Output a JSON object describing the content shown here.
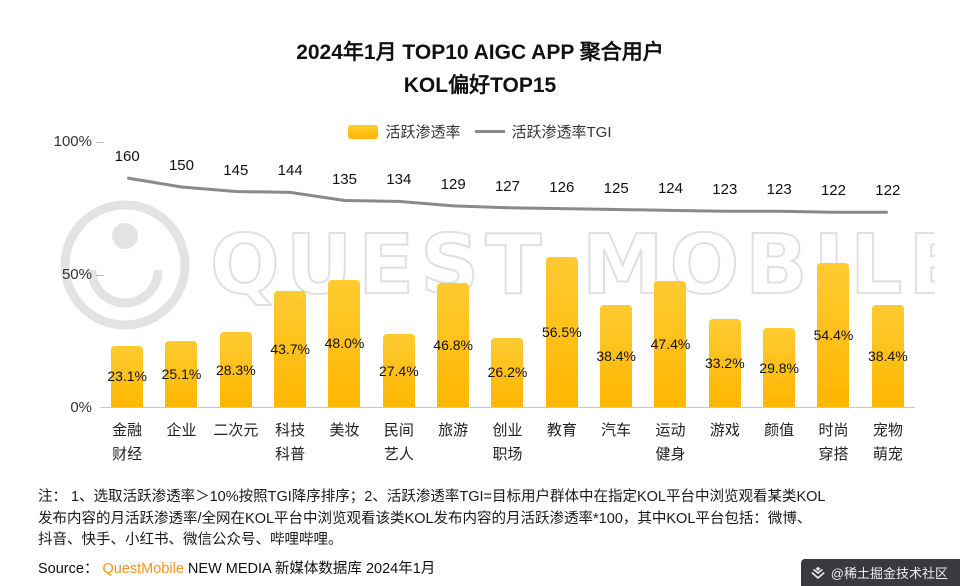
{
  "title": {
    "line1": "2024年1月 TOP10 AIGC APP 聚合用户",
    "line2": "KOL偏好TOP15"
  },
  "legend": {
    "bar_label": "活跃渗透率",
    "line_label": "活跃渗透率TGI"
  },
  "chart_data": {
    "type": "bar",
    "title": "2024年1月 TOP10 AIGC APP 聚合用户 KOL偏好TOP15",
    "categories": [
      "金融\n财经",
      "企业",
      "二次元",
      "科技\n科普",
      "美妆",
      "民间\n艺人",
      "旅游",
      "创业\n职场",
      "教育",
      "汽车",
      "运动\n健身",
      "游戏",
      "颜值",
      "时尚\n穿搭",
      "宠物\n萌宠"
    ],
    "series": [
      {
        "name": "活跃渗透率",
        "type": "bar",
        "unit": "%",
        "color": "#FFB600",
        "color_top": "#FFCB32",
        "values": [
          23.1,
          25.1,
          28.3,
          43.7,
          48.0,
          27.4,
          46.8,
          26.2,
          56.5,
          38.4,
          47.4,
          33.2,
          29.8,
          54.4,
          38.4
        ]
      },
      {
        "name": "活跃渗透率TGI",
        "type": "line",
        "color": "#8A8A8A",
        "values": [
          160,
          150,
          145,
          144,
          135,
          134,
          129,
          127,
          126,
          125,
          124,
          123,
          123,
          122,
          122
        ]
      }
    ],
    "y_axis": {
      "min": 0,
      "max": 100,
      "ticks": [
        "100%",
        "50%",
        "0%"
      ]
    },
    "grid": "off",
    "legend_position": "top"
  },
  "footnote": {
    "lines": [
      "注：  1、选取活跃渗透率＞10%按照TGI降序排序；2、活跃渗透率TGI=目标用户群体中在指定KOL平台中浏览观看某类KOL",
      "发布内容的月活跃渗透率/全网在KOL平台中浏览观看该类KOL发布内容的月活跃渗透率*100，其中KOL平台包括：微博、",
      "抖音、快手、小红书、微信公众号、哔哩哔哩。"
    ]
  },
  "source": {
    "label": "Source：",
    "brand": "QuestMobile",
    "rest": " NEW MEDIA 新媒体数据库 2024年1月"
  },
  "watermark": {
    "text": "QUEST MOBILE"
  },
  "badge": {
    "text": "@稀土掘金技术社区"
  },
  "colors": {
    "bar": "#FFB600",
    "bar_top": "#FFCB32",
    "line": "#8A8A8A",
    "brand_orange": "#F7941D",
    "badge_bg": "#3A3A3E"
  }
}
